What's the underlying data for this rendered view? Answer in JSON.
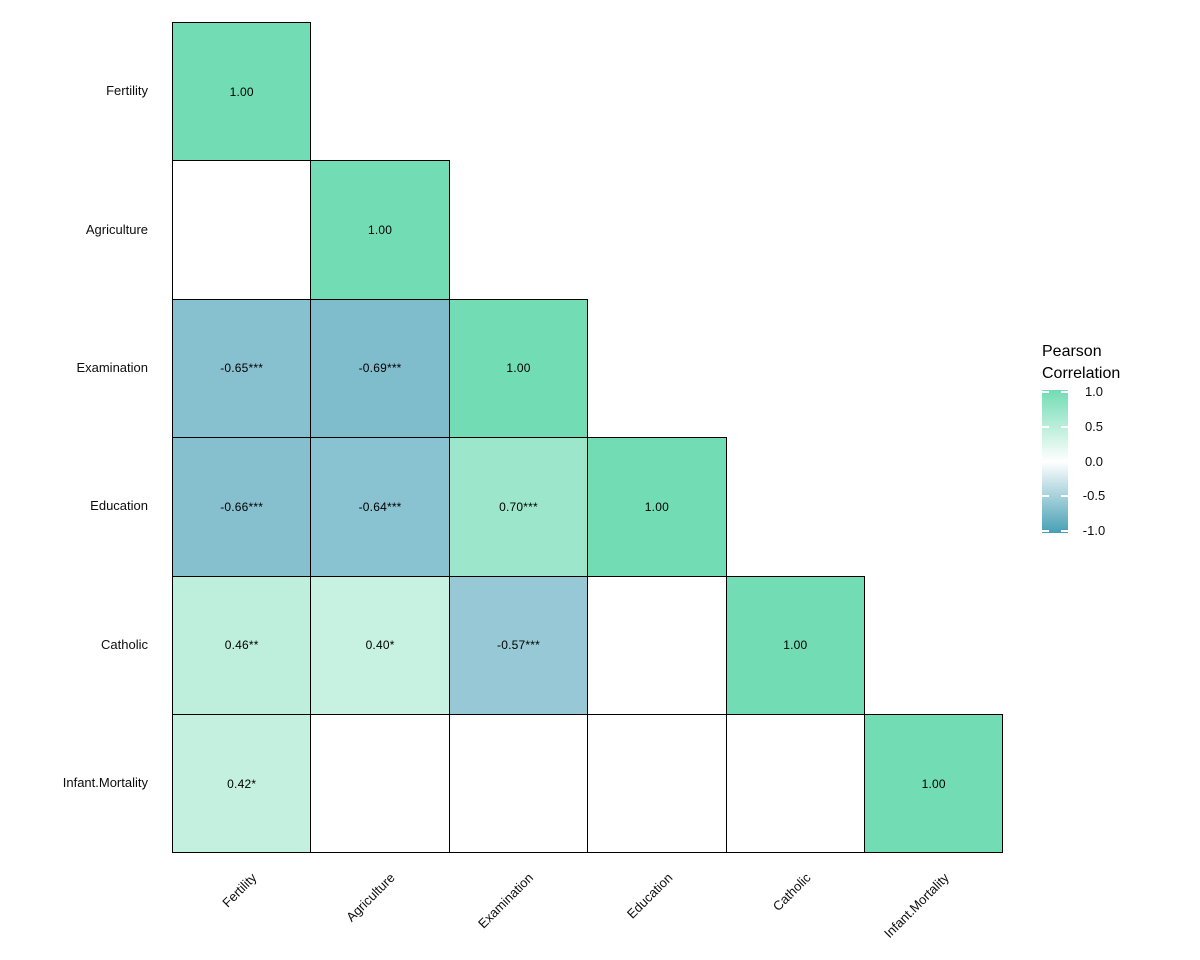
{
  "chart_data": {
    "type": "heatmap",
    "subtype": "correlation-matrix-lower-triangle",
    "title": "",
    "variables": [
      "Fertility",
      "Agriculture",
      "Examination",
      "Education",
      "Catholic",
      "Infant.Mortality"
    ],
    "legend": {
      "title_lines": [
        "Pearson",
        "Correlation"
      ],
      "tick_labels": [
        "1.0",
        "0.5",
        "0.0",
        "-0.5",
        "-1.0"
      ],
      "tick_values": [
        1.0,
        0.5,
        0.0,
        -0.5,
        -1.0
      ],
      "range": [
        -1,
        1
      ],
      "position": "right"
    },
    "colors": {
      "high": "#72DCB4",
      "mid": "#FFFFFF",
      "low": "#47A0B5",
      "blank_cell": "#FFFFFF",
      "cell_border": "#000000",
      "text": "#000000",
      "background": "#FFFFFF"
    },
    "matrix": [
      {
        "variable": "Fertility",
        "cells": [
          {
            "x": "Fertility",
            "value": 1.0,
            "label": "1.00"
          }
        ]
      },
      {
        "variable": "Agriculture",
        "cells": [
          {
            "x": "Fertility",
            "value": null,
            "label": ""
          },
          {
            "x": "Agriculture",
            "value": 1.0,
            "label": "1.00"
          }
        ]
      },
      {
        "variable": "Examination",
        "cells": [
          {
            "x": "Fertility",
            "value": -0.65,
            "label": "-0.65***"
          },
          {
            "x": "Agriculture",
            "value": -0.69,
            "label": "-0.69***"
          },
          {
            "x": "Examination",
            "value": 1.0,
            "label": "1.00"
          }
        ]
      },
      {
        "variable": "Education",
        "cells": [
          {
            "x": "Fertility",
            "value": -0.66,
            "label": "-0.66***"
          },
          {
            "x": "Agriculture",
            "value": -0.64,
            "label": "-0.64***"
          },
          {
            "x": "Examination",
            "value": 0.7,
            "label": "0.70***"
          },
          {
            "x": "Education",
            "value": 1.0,
            "label": "1.00"
          }
        ]
      },
      {
        "variable": "Catholic",
        "cells": [
          {
            "x": "Fertility",
            "value": 0.46,
            "label": "0.46**"
          },
          {
            "x": "Agriculture",
            "value": 0.4,
            "label": "0.40*"
          },
          {
            "x": "Examination",
            "value": -0.57,
            "label": "-0.57***"
          },
          {
            "x": "Education",
            "value": null,
            "label": ""
          },
          {
            "x": "Catholic",
            "value": 1.0,
            "label": "1.00"
          }
        ]
      },
      {
        "variable": "Infant.Mortality",
        "cells": [
          {
            "x": "Fertility",
            "value": 0.42,
            "label": "0.42*"
          },
          {
            "x": "Agriculture",
            "value": null,
            "label": ""
          },
          {
            "x": "Examination",
            "value": null,
            "label": ""
          },
          {
            "x": "Education",
            "value": null,
            "label": ""
          },
          {
            "x": "Catholic",
            "value": null,
            "label": ""
          },
          {
            "x": "Infant.Mortality",
            "value": 1.0,
            "label": "1.00"
          }
        ]
      }
    ]
  }
}
